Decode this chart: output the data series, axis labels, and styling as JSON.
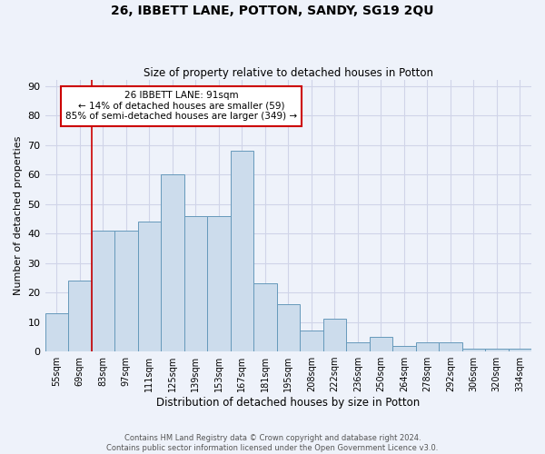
{
  "title": "26, IBBETT LANE, POTTON, SANDY, SG19 2QU",
  "subtitle": "Size of property relative to detached houses in Potton",
  "xlabel": "Distribution of detached houses by size in Potton",
  "ylabel": "Number of detached properties",
  "categories": [
    "55sqm",
    "69sqm",
    "83sqm",
    "97sqm",
    "111sqm",
    "125sqm",
    "139sqm",
    "153sqm",
    "167sqm",
    "181sqm",
    "195sqm",
    "208sqm",
    "222sqm",
    "236sqm",
    "250sqm",
    "264sqm",
    "278sqm",
    "292sqm",
    "306sqm",
    "320sqm",
    "334sqm"
  ],
  "values": [
    13,
    24,
    41,
    41,
    44,
    60,
    46,
    46,
    68,
    23,
    16,
    7,
    11,
    3,
    5,
    2,
    3,
    3,
    1,
    1,
    1
  ],
  "bar_color": "#ccdcec",
  "bar_edge_color": "#6699bb",
  "background_color": "#eef2fa",
  "grid_color": "#d0d4e8",
  "ylim": [
    0,
    92
  ],
  "yticks": [
    0,
    10,
    20,
    30,
    40,
    50,
    60,
    70,
    80,
    90
  ],
  "property_label": "26 IBBETT LANE: 91sqm",
  "annotation_line1": "← 14% of detached houses are smaller (59)",
  "annotation_line2": "85% of semi-detached houses are larger (349) →",
  "annotation_box_color": "#ffffff",
  "annotation_box_edge": "#cc0000",
  "vline_color": "#cc0000",
  "vline_x": 1.5,
  "footer1": "Contains HM Land Registry data © Crown copyright and database right 2024.",
  "footer2": "Contains public sector information licensed under the Open Government Licence v3.0."
}
